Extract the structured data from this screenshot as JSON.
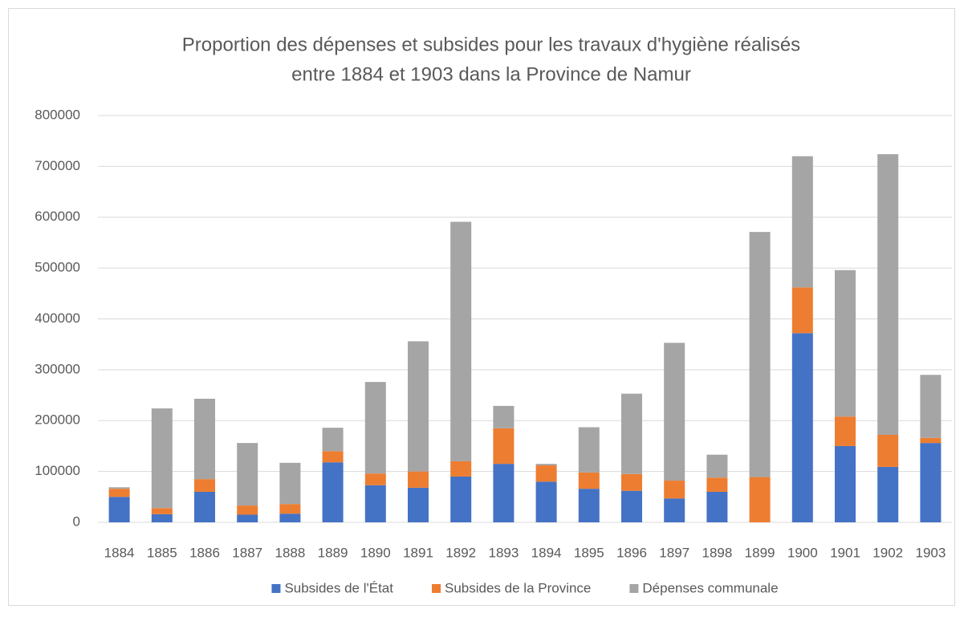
{
  "chart_data": {
    "type": "stacked_bar",
    "title": [
      "Proportion des dépenses et subsides pour les travaux d'hygiène réalisés",
      "entre 1884 et 1903 dans la Province de Namur"
    ],
    "categories": [
      "1884",
      "1885",
      "1886",
      "1887",
      "1888",
      "1889",
      "1890",
      "1891",
      "1892",
      "1893",
      "1894",
      "1895",
      "1896",
      "1897",
      "1898",
      "1899",
      "1900",
      "1901",
      "1902",
      "1903"
    ],
    "series": [
      {
        "name": "Subsides de l'État",
        "color": "#4472c4",
        "values": [
          50000,
          16000,
          60000,
          15000,
          17000,
          118000,
          73000,
          68000,
          90000,
          115000,
          80000,
          66000,
          62000,
          47000,
          60000,
          0,
          372000,
          150000,
          109000,
          156000
        ]
      },
      {
        "name": "Subsides de la Province",
        "color": "#ed7d31",
        "values": [
          16000,
          12000,
          25000,
          18000,
          19000,
          22000,
          23000,
          32000,
          30000,
          70000,
          32000,
          32000,
          33000,
          35000,
          28000,
          89000,
          90000,
          58000,
          63000,
          10000
        ]
      },
      {
        "name": "Dépenses communale",
        "color": "#a5a5a5",
        "values": [
          3000,
          196000,
          158000,
          123000,
          81000,
          46000,
          180000,
          256000,
          471000,
          44000,
          3000,
          89000,
          158000,
          271000,
          45000,
          482000,
          258000,
          288000,
          552000,
          124000
        ]
      }
    ],
    "ylim": [
      0,
      800000
    ],
    "yticks": [
      0,
      100000,
      200000,
      300000,
      400000,
      500000,
      600000,
      700000,
      800000
    ],
    "grid": true,
    "legend": "bottom"
  }
}
